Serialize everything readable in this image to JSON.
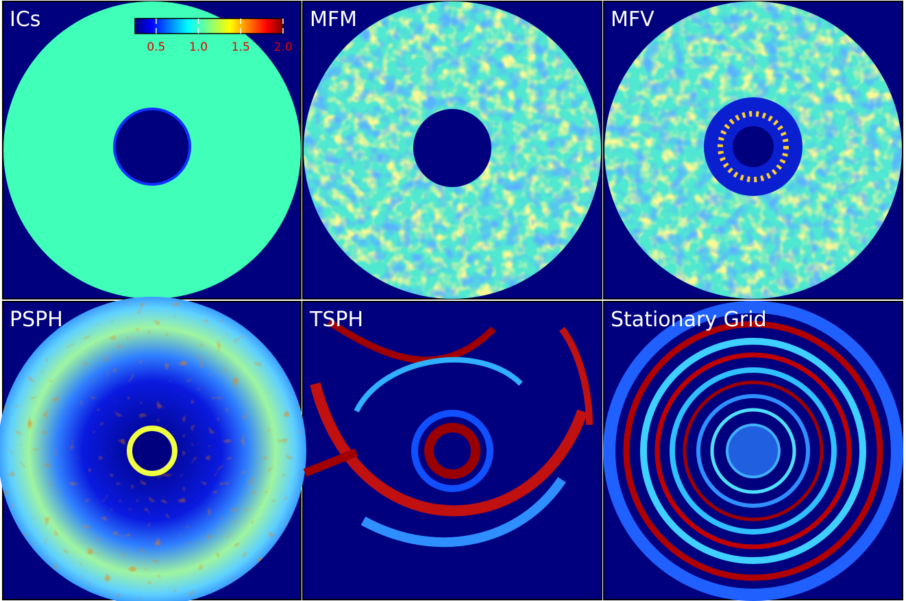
{
  "chart_data": {
    "type": "density-maps",
    "panels": [
      "ICs",
      "MFM",
      "MFV",
      "PSPH",
      "TSPH",
      "Stationary Grid"
    ],
    "colorbar": {
      "xlim": [
        0.25,
        2.0
      ],
      "xticks": [
        0.5,
        {
          "value": 1,
          "label": "1.0"
        },
        1.5,
        {
          "value": 2,
          "label": "2.0"
        }
      ],
      "tick_color": "#e00000"
    }
  }
}
